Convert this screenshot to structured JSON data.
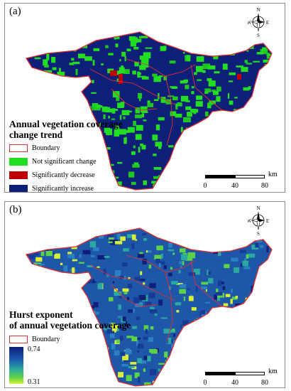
{
  "panel_a": {
    "label": "(a)",
    "legend_title_line1": "Annual vegetation coverage",
    "legend_title_line2": "change trend",
    "legend_items": [
      {
        "label": "Boundary",
        "color": "#e03030",
        "kind": "outline"
      },
      {
        "label": "Not significant change",
        "color": "#22dd22",
        "kind": "fill"
      },
      {
        "label": "Significantly decrease",
        "color": "#c00000",
        "kind": "fill"
      },
      {
        "label": "Significantly increase",
        "color": "#0d1f78",
        "kind": "fill"
      }
    ],
    "scale": {
      "ticks": [
        "0",
        "40",
        "80"
      ],
      "unit": "km"
    }
  },
  "panel_b": {
    "label": "(b)",
    "legend_title_line1": "Hurst exponent",
    "legend_title_line2": "of annual vegetation coverage",
    "boundary_label": "Boundary",
    "boundary_color": "#e03030",
    "gradient_max": "0.74",
    "gradient_min": "0.31",
    "scale": {
      "ticks": [
        "0",
        "40",
        "80"
      ],
      "unit": "km"
    }
  },
  "compass": {
    "n": "N",
    "s": "S",
    "e": "E",
    "w": "W"
  }
}
